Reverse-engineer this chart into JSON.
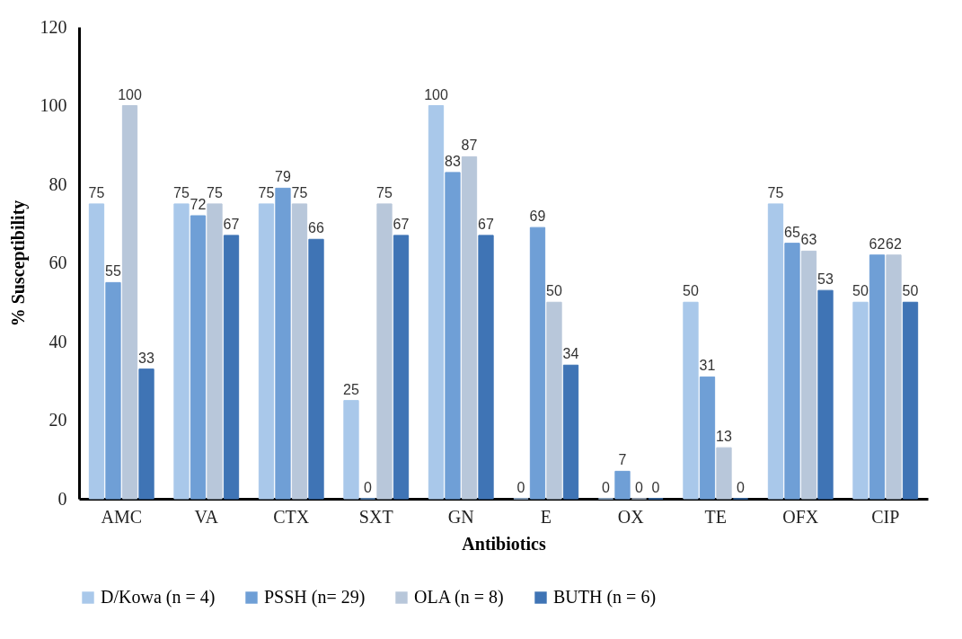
{
  "chart_data": {
    "type": "bar",
    "xlabel": "Antibiotics",
    "ylabel": "% Susceptibility",
    "categories": [
      "AMC",
      "VA",
      "CTX",
      "SXT",
      "GN",
      "E",
      "OX",
      "TE",
      "OFX",
      "CIP"
    ],
    "series": [
      {
        "name": "D/Kowa (n = 4)",
        "color": "#a9c8ea",
        "values": [
          75,
          75,
          75,
          25,
          100,
          0,
          0,
          50,
          75,
          50
        ]
      },
      {
        "name": "PSSH (n= 29)",
        "color": "#6f9fd6",
        "values": [
          55,
          72,
          79,
          0,
          83,
          69,
          7,
          31,
          65,
          62
        ]
      },
      {
        "name": "OLA (n = 8)",
        "color": "#b8c7da",
        "values": [
          100,
          75,
          75,
          75,
          87,
          50,
          0,
          13,
          63,
          62
        ]
      },
      {
        "name": "BUTH (n = 6)",
        "color": "#3f74b5",
        "values": [
          33,
          67,
          66,
          67,
          67,
          34,
          0,
          0,
          53,
          50
        ]
      }
    ],
    "ylim": [
      0,
      120
    ],
    "yticks": [
      0,
      20,
      40,
      60,
      80,
      100,
      120
    ],
    "grid": false,
    "legend": "bottom",
    "data_labels": true
  }
}
